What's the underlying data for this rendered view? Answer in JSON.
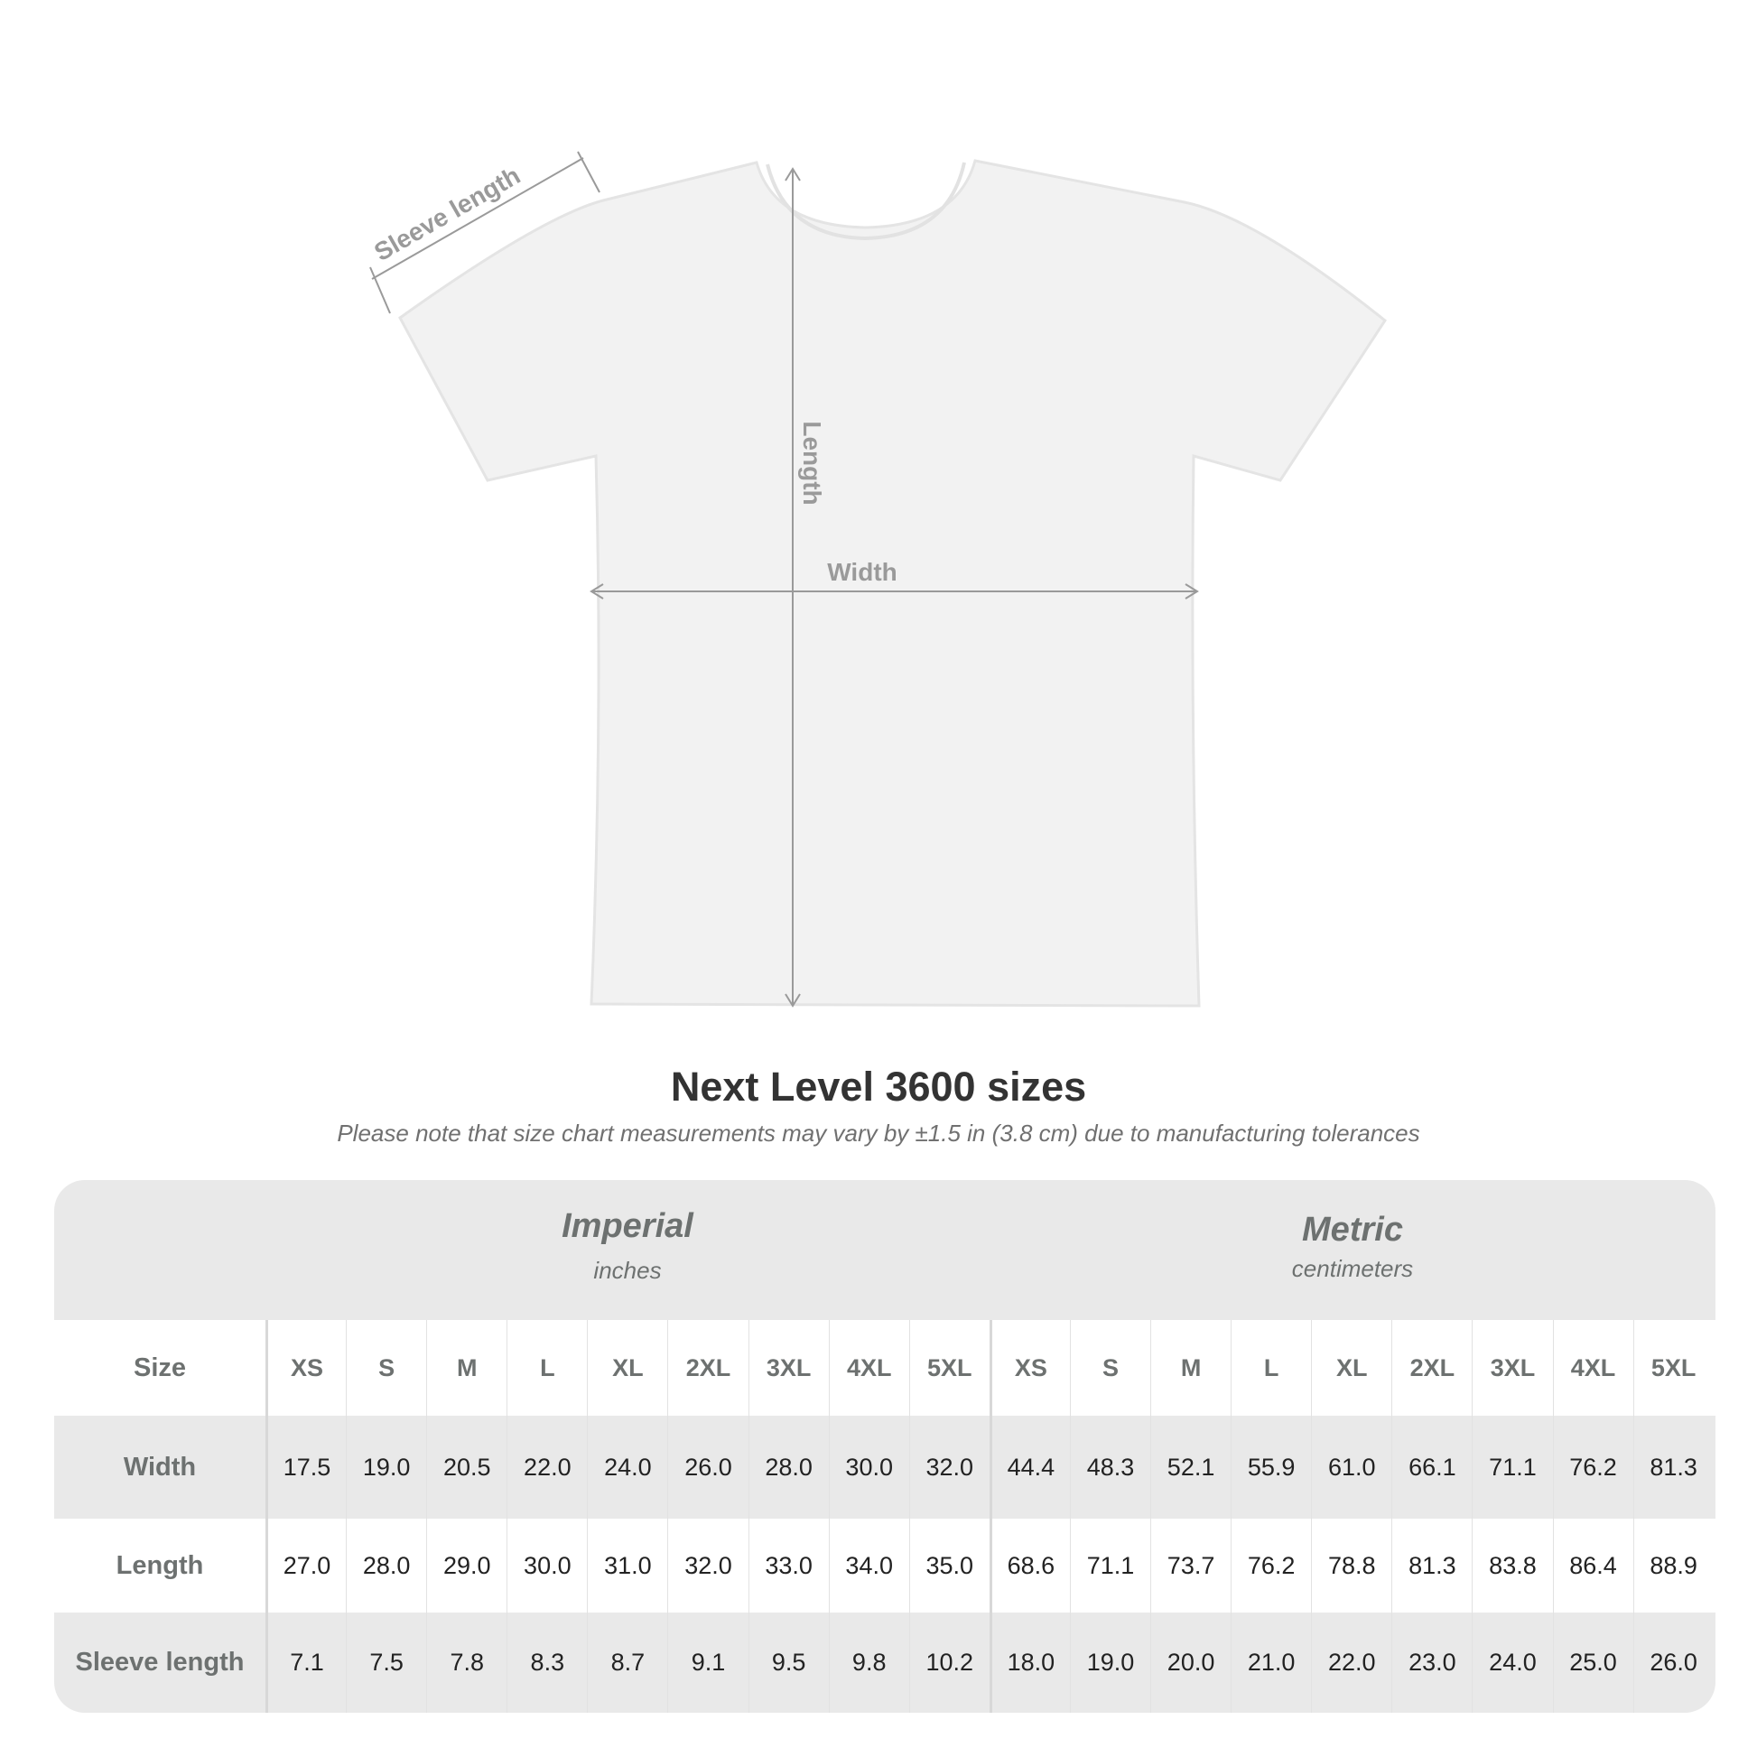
{
  "diagram": {
    "labels": {
      "sleeve": "Sleeve length",
      "length": "Length",
      "width": "Width"
    },
    "colors": {
      "shirt": "#f2f2f2",
      "arrow": "#9a9a9a"
    }
  },
  "title": "Next Level 3600 sizes",
  "subtitle": "Please note that size chart measurements may vary by ±1.5 in (3.8 cm) due to manufacturing tolerances",
  "table": {
    "imperial": {
      "title": "Imperial",
      "unit": "inches"
    },
    "metric": {
      "title": "Metric",
      "unit": "centimeters"
    },
    "size_label": "Size",
    "sizes": [
      "XS",
      "S",
      "M",
      "L",
      "XL",
      "2XL",
      "3XL",
      "4XL",
      "5XL"
    ],
    "rows": [
      {
        "label": "Width",
        "imperial": [
          "17.5",
          "19.0",
          "20.5",
          "22.0",
          "24.0",
          "26.0",
          "28.0",
          "30.0",
          "32.0"
        ],
        "metric": [
          "44.4",
          "48.3",
          "52.1",
          "55.9",
          "61.0",
          "66.1",
          "71.1",
          "76.2",
          "81.3"
        ]
      },
      {
        "label": "Length",
        "imperial": [
          "27.0",
          "28.0",
          "29.0",
          "30.0",
          "31.0",
          "32.0",
          "33.0",
          "34.0",
          "35.0"
        ],
        "metric": [
          "68.6",
          "71.1",
          "73.7",
          "76.2",
          "78.8",
          "81.3",
          "83.8",
          "86.4",
          "88.9"
        ]
      },
      {
        "label": "Sleeve length",
        "imperial": [
          "7.1",
          "7.5",
          "7.8",
          "8.3",
          "8.7",
          "9.1",
          "9.5",
          "9.8",
          "10.2"
        ],
        "metric": [
          "18.0",
          "19.0",
          "20.0",
          "21.0",
          "22.0",
          "23.0",
          "24.0",
          "25.0",
          "26.0"
        ]
      }
    ]
  }
}
